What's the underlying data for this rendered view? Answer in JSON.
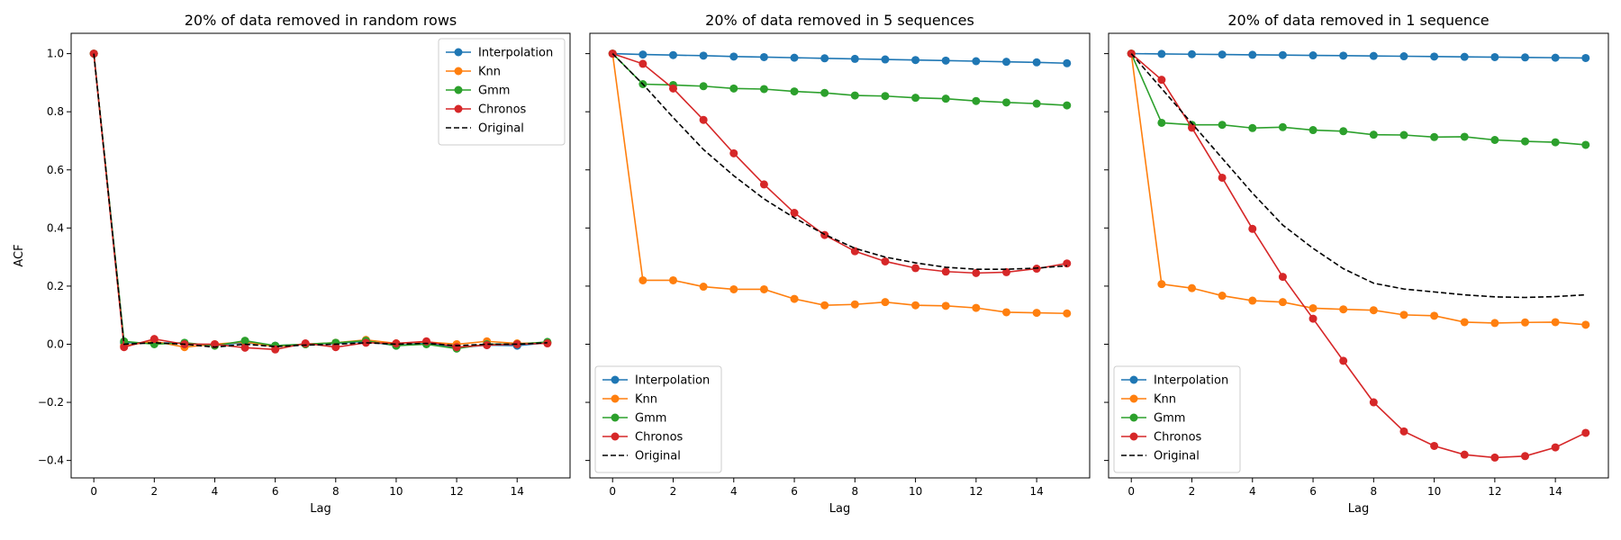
{
  "chart_data": [
    {
      "type": "line",
      "title": "20% of data removed in random rows",
      "xlabel": "Lag",
      "ylabel": "ACF",
      "xlim": [
        -0.75,
        15.75
      ],
      "ylim": [
        -0.46,
        1.07
      ],
      "xticks": [
        0,
        2,
        4,
        6,
        8,
        10,
        12,
        14
      ],
      "yticks": [
        -0.4,
        -0.2,
        0.0,
        0.2,
        0.4,
        0.6,
        0.8,
        1.0
      ],
      "xtick_labels": [
        "0",
        "2",
        "4",
        "6",
        "8",
        "10",
        "12",
        "14"
      ],
      "ytick_labels": [
        "−0.4",
        "−0.2",
        "0.0",
        "0.2",
        "0.4",
        "0.6",
        "0.8",
        "1.0"
      ],
      "legend_position": "top-right",
      "x": [
        0,
        1,
        2,
        3,
        4,
        5,
        6,
        7,
        8,
        9,
        10,
        11,
        12,
        13,
        14,
        15
      ],
      "series": [
        {
          "name": "Interpolation",
          "color": "#1f77b4",
          "style": "line-marker",
          "values": [
            1.0,
            0.005,
            0.005,
            0.003,
            -0.003,
            0.005,
            -0.005,
            0.0,
            0.003,
            0.01,
            -0.005,
            0.005,
            -0.012,
            -0.003,
            -0.005,
            0.005
          ]
        },
        {
          "name": "Knn",
          "color": "#ff7f0e",
          "style": "line-marker",
          "values": [
            1.0,
            -0.005,
            0.01,
            -0.01,
            0.0,
            0.008,
            -0.008,
            0.0,
            0.005,
            0.015,
            0.003,
            0.008,
            0.0,
            0.01,
            0.003,
            0.005
          ]
        },
        {
          "name": "Gmm",
          "color": "#2ca02c",
          "style": "line-marker",
          "values": [
            1.0,
            0.01,
            0.0,
            0.005,
            -0.005,
            0.012,
            -0.005,
            0.0,
            0.005,
            0.012,
            -0.005,
            0.0,
            -0.015,
            0.0,
            0.0,
            0.008
          ]
        },
        {
          "name": "Chronos",
          "color": "#d62728",
          "style": "line-marker",
          "values": [
            1.0,
            -0.01,
            0.018,
            0.0,
            0.0,
            -0.012,
            -0.018,
            0.003,
            -0.01,
            0.005,
            0.003,
            0.01,
            -0.01,
            -0.003,
            0.0,
            0.003
          ]
        },
        {
          "name": "Original",
          "color": "#000000",
          "style": "dashed",
          "values": [
            1.0,
            0.0,
            0.005,
            0.0,
            -0.01,
            0.0,
            -0.008,
            -0.003,
            0.0,
            0.005,
            0.0,
            0.003,
            -0.005,
            0.0,
            0.0,
            0.005
          ]
        }
      ]
    },
    {
      "type": "line",
      "title": "20% of data removed in 5 sequences",
      "xlabel": "Lag",
      "ylabel": "",
      "xlim": [
        -0.75,
        15.75
      ],
      "ylim": [
        -0.46,
        1.07
      ],
      "xticks": [
        0,
        2,
        4,
        6,
        8,
        10,
        12,
        14
      ],
      "yticks": [
        -0.4,
        -0.2,
        0.0,
        0.2,
        0.4,
        0.6,
        0.8,
        1.0
      ],
      "xtick_labels": [
        "0",
        "2",
        "4",
        "6",
        "8",
        "10",
        "12",
        "14"
      ],
      "ytick_labels": [],
      "legend_position": "bottom-left",
      "x": [
        0,
        1,
        2,
        3,
        4,
        5,
        6,
        7,
        8,
        9,
        10,
        11,
        12,
        13,
        14,
        15
      ],
      "series": [
        {
          "name": "Interpolation",
          "color": "#1f77b4",
          "style": "line-marker",
          "values": [
            1.0,
            0.997,
            0.995,
            0.993,
            0.99,
            0.988,
            0.986,
            0.984,
            0.982,
            0.98,
            0.978,
            0.976,
            0.974,
            0.972,
            0.97,
            0.967
          ]
        },
        {
          "name": "Knn",
          "color": "#ff7f0e",
          "style": "line-marker",
          "values": [
            1.0,
            0.22,
            0.22,
            0.198,
            0.189,
            0.189,
            0.156,
            0.134,
            0.137,
            0.145,
            0.134,
            0.132,
            0.125,
            0.11,
            0.108,
            0.106
          ]
        },
        {
          "name": "Gmm",
          "color": "#2ca02c",
          "style": "line-marker",
          "values": [
            1.0,
            0.895,
            0.892,
            0.888,
            0.88,
            0.878,
            0.87,
            0.865,
            0.856,
            0.854,
            0.848,
            0.845,
            0.837,
            0.832,
            0.828,
            0.822
          ]
        },
        {
          "name": "Chronos",
          "color": "#d62728",
          "style": "line-marker",
          "values": [
            1.0,
            0.965,
            0.88,
            0.772,
            0.657,
            0.55,
            0.452,
            0.376,
            0.32,
            0.285,
            0.262,
            0.25,
            0.245,
            0.248,
            0.26,
            0.278
          ]
        },
        {
          "name": "Original",
          "color": "#000000",
          "style": "dashed",
          "values": [
            1.0,
            0.895,
            0.78,
            0.67,
            0.58,
            0.5,
            0.435,
            0.378,
            0.33,
            0.3,
            0.28,
            0.265,
            0.258,
            0.258,
            0.262,
            0.27
          ]
        }
      ]
    },
    {
      "type": "line",
      "title": "20% of data removed in 1 sequence",
      "xlabel": "Lag",
      "ylabel": "",
      "xlim": [
        -0.75,
        15.75
      ],
      "ylim": [
        -0.46,
        1.07
      ],
      "xticks": [
        0,
        2,
        4,
        6,
        8,
        10,
        12,
        14
      ],
      "yticks": [
        -0.4,
        -0.2,
        0.0,
        0.2,
        0.4,
        0.6,
        0.8,
        1.0
      ],
      "xtick_labels": [
        "0",
        "2",
        "4",
        "6",
        "8",
        "10",
        "12",
        "14"
      ],
      "ytick_labels": [],
      "legend_position": "bottom-left",
      "x": [
        0,
        1,
        2,
        3,
        4,
        5,
        6,
        7,
        8,
        9,
        10,
        11,
        12,
        13,
        14,
        15
      ],
      "series": [
        {
          "name": "Interpolation",
          "color": "#1f77b4",
          "style": "line-marker",
          "values": [
            1.0,
            0.999,
            0.998,
            0.997,
            0.996,
            0.995,
            0.994,
            0.993,
            0.992,
            0.991,
            0.99,
            0.989,
            0.988,
            0.987,
            0.986,
            0.985
          ]
        },
        {
          "name": "Knn",
          "color": "#ff7f0e",
          "style": "line-marker",
          "values": [
            1.0,
            0.207,
            0.193,
            0.167,
            0.15,
            0.145,
            0.124,
            0.12,
            0.117,
            0.101,
            0.098,
            0.076,
            0.073,
            0.075,
            0.076,
            0.067
          ]
        },
        {
          "name": "Gmm",
          "color": "#2ca02c",
          "style": "line-marker",
          "values": [
            1.0,
            0.762,
            0.755,
            0.755,
            0.744,
            0.747,
            0.737,
            0.733,
            0.721,
            0.72,
            0.713,
            0.714,
            0.703,
            0.698,
            0.695,
            0.686
          ]
        },
        {
          "name": "Chronos",
          "color": "#d62728",
          "style": "line-marker",
          "values": [
            1.0,
            0.91,
            0.745,
            0.573,
            0.397,
            0.232,
            0.088,
            -0.057,
            -0.2,
            -0.3,
            -0.35,
            -0.38,
            -0.39,
            -0.385,
            -0.355,
            -0.305
          ]
        },
        {
          "name": "Original",
          "color": "#000000",
          "style": "dashed",
          "values": [
            1.0,
            0.88,
            0.76,
            0.64,
            0.52,
            0.41,
            0.33,
            0.26,
            0.21,
            0.19,
            0.18,
            0.17,
            0.163,
            0.161,
            0.164,
            0.17
          ]
        }
      ]
    }
  ]
}
